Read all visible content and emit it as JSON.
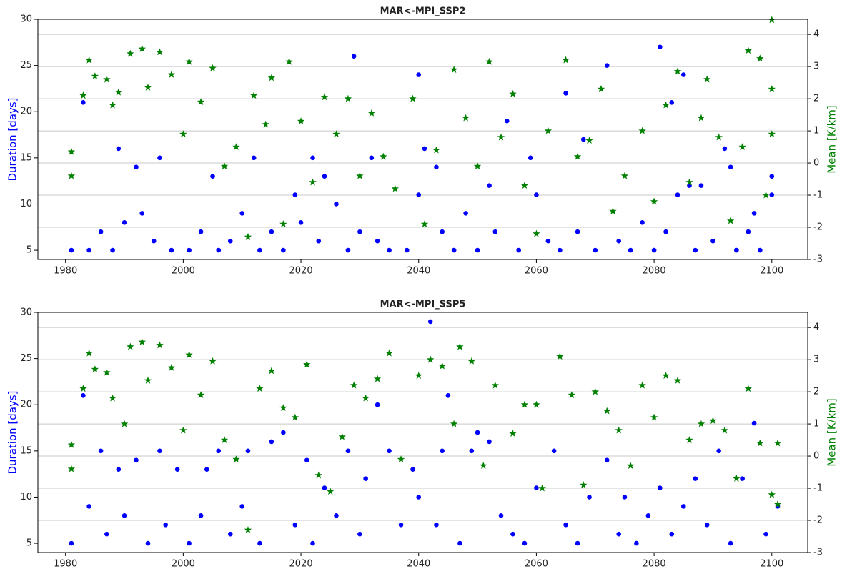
{
  "chart_data": [
    {
      "type": "scatter",
      "title": "MAR<-MPI_SSP2",
      "ylabel": "Duration [days]",
      "y2label": "Mean [K/km]",
      "xlim": [
        1975.3,
        2106.1
      ],
      "ylim": [
        4,
        30
      ],
      "y2lim": [
        -3,
        4.47
      ],
      "xticks": [
        1980,
        2000,
        2020,
        2040,
        2060,
        2080,
        2100
      ],
      "yticks": [
        5,
        10,
        15,
        20,
        25,
        30
      ],
      "y2ticks": [
        -3,
        -2,
        -1,
        0,
        1,
        2,
        3,
        4
      ],
      "grid": "y2",
      "series": [
        {
          "color": "#0000ff",
          "marker": "circle",
          "x": [
            1981,
            1983,
            1984,
            1986,
            1988,
            1989,
            1990,
            1992,
            1993,
            1995,
            1996,
            1998,
            2001,
            2003,
            2005,
            2006,
            2008,
            2010,
            2012,
            2013,
            2015,
            2017,
            2019,
            2020,
            2022,
            2023,
            2024,
            2026,
            2028,
            2029,
            2030,
            2032,
            2033,
            2035,
            2038,
            2040,
            2040,
            2041,
            2043,
            2044,
            2046,
            2048,
            2050,
            2052,
            2053,
            2055,
            2057,
            2059,
            2060,
            2062,
            2064,
            2065,
            2067,
            2068,
            2070,
            2072,
            2074,
            2076,
            2078,
            2080,
            2081,
            2082,
            2083,
            2084,
            2085,
            2086,
            2087,
            2088,
            2090,
            2092,
            2093,
            2094,
            2096,
            2097,
            2098,
            2100,
            2100
          ],
          "values": [
            5,
            21,
            5,
            7,
            5,
            16,
            8,
            14,
            9,
            6,
            15,
            5,
            5,
            7,
            13,
            5,
            6,
            9,
            15,
            5,
            7,
            5,
            11,
            8,
            15,
            6,
            13,
            10,
            5,
            26,
            7,
            15,
            6,
            5,
            5,
            24,
            11,
            16,
            14,
            7,
            5,
            9,
            5,
            12,
            7,
            19,
            5,
            15,
            11,
            6,
            5,
            22,
            7,
            17,
            5,
            25,
            6,
            5,
            8,
            5,
            27,
            7,
            21,
            11,
            24,
            12,
            5,
            12,
            6,
            16,
            14,
            5,
            7,
            9,
            5,
            13,
            11
          ]
        },
        {
          "color": "#008000",
          "marker": "star",
          "axis": "y2",
          "x": [
            1981,
            1981,
            1983,
            1984,
            1985,
            1987,
            1988,
            1989,
            1991,
            1993,
            1994,
            1996,
            1998,
            2000,
            2001,
            2003,
            2005,
            2007,
            2009,
            2011,
            2012,
            2014,
            2015,
            2017,
            2018,
            2020,
            2022,
            2024,
            2026,
            2028,
            2030,
            2032,
            2034,
            2036,
            2039,
            2041,
            2043,
            2046,
            2048,
            2050,
            2052,
            2054,
            2056,
            2058,
            2060,
            2062,
            2065,
            2067,
            2069,
            2071,
            2073,
            2075,
            2078,
            2080,
            2082,
            2084,
            2086,
            2088,
            2089,
            2091,
            2093,
            2095,
            2096,
            2098,
            2099,
            2100,
            2100,
            2100
          ],
          "values": [
            -0.4,
            0.35,
            2.1,
            3.2,
            2.7,
            2.6,
            1.8,
            2.2,
            3.4,
            3.55,
            2.35,
            3.45,
            2.75,
            0.9,
            3.15,
            1.9,
            2.95,
            -0.1,
            0.5,
            -2.3,
            2.1,
            1.2,
            2.65,
            -1.9,
            3.15,
            1.3,
            -0.6,
            2.05,
            0.9,
            2.0,
            -0.4,
            1.55,
            0.2,
            -0.8,
            2.0,
            -1.9,
            0.4,
            2.9,
            1.4,
            -0.1,
            3.15,
            0.8,
            2.15,
            -0.7,
            -2.2,
            1.0,
            3.2,
            0.2,
            0.7,
            2.3,
            -1.5,
            -0.4,
            1.0,
            -1.2,
            1.8,
            2.85,
            -0.6,
            1.4,
            2.6,
            0.8,
            -1.8,
            0.5,
            3.5,
            3.25,
            -1.0,
            4.45,
            2.3,
            0.9
          ]
        }
      ]
    },
    {
      "type": "scatter",
      "title": "MAR<-MPI_SSP5",
      "ylabel": "Duration [days]",
      "y2label": "Mean [K/km]",
      "xlim": [
        1975.3,
        2106.1
      ],
      "ylim": [
        4,
        30
      ],
      "y2lim": [
        -3,
        4.47
      ],
      "xticks": [
        1980,
        2000,
        2020,
        2040,
        2060,
        2080,
        2100
      ],
      "yticks": [
        5,
        10,
        15,
        20,
        25,
        30
      ],
      "y2ticks": [
        -3,
        -2,
        -1,
        0,
        1,
        2,
        3,
        4
      ],
      "grid": "y2",
      "series": [
        {
          "color": "#0000ff",
          "marker": "circle",
          "x": [
            1981,
            1983,
            1984,
            1986,
            1987,
            1989,
            1990,
            1992,
            1994,
            1996,
            1997,
            1999,
            2001,
            2003,
            2004,
            2006,
            2008,
            2010,
            2011,
            2013,
            2015,
            2017,
            2019,
            2021,
            2022,
            2024,
            2026,
            2028,
            2030,
            2031,
            2033,
            2035,
            2037,
            2039,
            2040,
            2042,
            2043,
            2044,
            2045,
            2047,
            2049,
            2050,
            2052,
            2054,
            2056,
            2058,
            2060,
            2063,
            2065,
            2067,
            2069,
            2072,
            2074,
            2075,
            2077,
            2079,
            2081,
            2083,
            2085,
            2087,
            2089,
            2091,
            2093,
            2095,
            2097,
            2099,
            2101
          ],
          "values": [
            5,
            21,
            9,
            15,
            6,
            13,
            8,
            14,
            5,
            15,
            7,
            13,
            5,
            8,
            13,
            15,
            6,
            9,
            15,
            5,
            16,
            17,
            7,
            14,
            5,
            11,
            8,
            15,
            6,
            12,
            20,
            15,
            7,
            13,
            10,
            29,
            7,
            15,
            21,
            5,
            15,
            17,
            16,
            8,
            6,
            5,
            11,
            15,
            7,
            5,
            10,
            14,
            6,
            10,
            5,
            8,
            11,
            6,
            9,
            12,
            7,
            15,
            5,
            12,
            18,
            6,
            9
          ]
        },
        {
          "color": "#008000",
          "marker": "star",
          "axis": "y2",
          "x": [
            1981,
            1981,
            1983,
            1984,
            1985,
            1987,
            1988,
            1990,
            1991,
            1993,
            1994,
            1996,
            1998,
            2000,
            2001,
            2003,
            2005,
            2007,
            2009,
            2011,
            2013,
            2015,
            2017,
            2019,
            2021,
            2023,
            2025,
            2027,
            2029,
            2031,
            2033,
            2035,
            2037,
            2040,
            2042,
            2044,
            2046,
            2047,
            2049,
            2051,
            2053,
            2056,
            2058,
            2060,
            2061,
            2064,
            2066,
            2068,
            2070,
            2072,
            2074,
            2076,
            2078,
            2080,
            2082,
            2084,
            2086,
            2088,
            2090,
            2092,
            2094,
            2096,
            2098,
            2100,
            2101,
            2101
          ],
          "values": [
            -0.4,
            0.35,
            2.1,
            3.2,
            2.7,
            2.6,
            1.8,
            1.0,
            3.4,
            3.55,
            2.35,
            3.45,
            2.75,
            0.8,
            3.15,
            1.9,
            2.95,
            0.5,
            -0.1,
            -2.3,
            2.1,
            2.65,
            1.5,
            1.2,
            2.85,
            -0.6,
            -1.1,
            0.6,
            2.2,
            1.8,
            2.4,
            3.2,
            -0.1,
            2.5,
            3.0,
            2.8,
            1.0,
            3.4,
            2.95,
            -0.3,
            2.2,
            0.7,
            1.6,
            1.6,
            -1.0,
            3.1,
            1.9,
            -0.9,
            2.0,
            1.4,
            0.8,
            -0.3,
            2.2,
            1.2,
            2.5,
            2.35,
            0.5,
            1.0,
            1.1,
            0.8,
            -0.7,
            2.1,
            0.4,
            -1.2,
            0.4,
            -1.5
          ]
        }
      ]
    }
  ]
}
